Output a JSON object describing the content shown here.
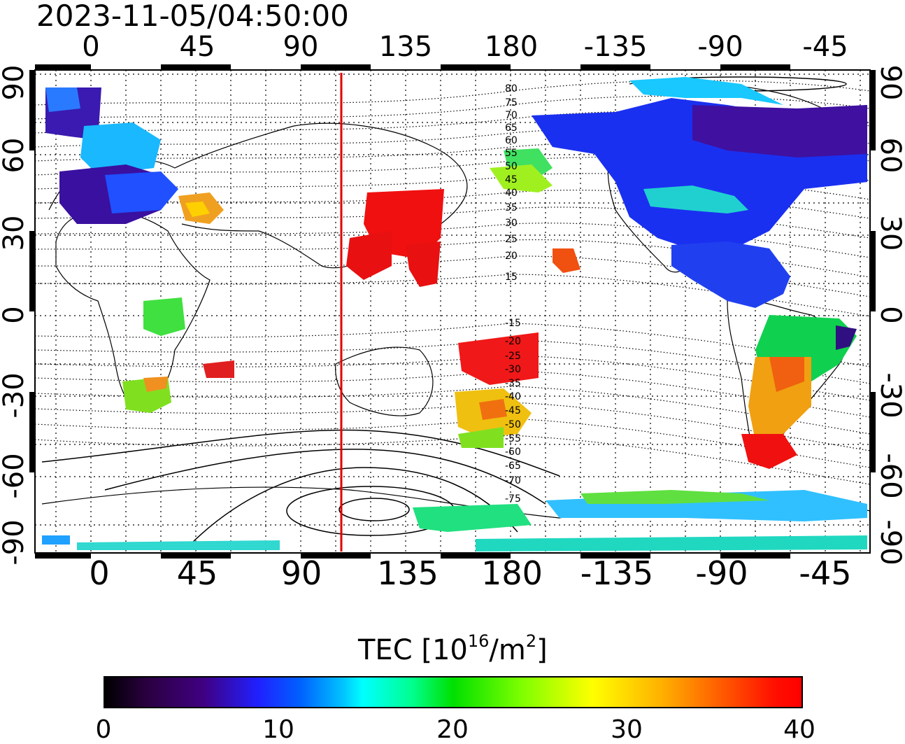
{
  "timestamp": "2023-11-05/04:50:00",
  "axes": {
    "lon_ticks": [
      "0",
      "45",
      "90",
      "135",
      "180",
      "-135",
      "-90",
      "-45"
    ],
    "lat_ticks": [
      "90",
      "60",
      "30",
      "0",
      "-30",
      "-60",
      "-90"
    ],
    "maglat_north": [
      "80",
      "75",
      "70",
      "65",
      "60",
      "55",
      "50",
      "45",
      "40",
      "35",
      "30",
      "25",
      "20",
      "15"
    ],
    "maglat_south": [
      "-15",
      "-20",
      "-25",
      "-30",
      "-35",
      "-40",
      "-45",
      "-50",
      "-55",
      "-60",
      "-65",
      "-70",
      "-75"
    ]
  },
  "colorbar": {
    "title_main": "TEC  [10",
    "title_exp": "16",
    "title_unit": "/m",
    "title_exp2": "2",
    "title_end": "]",
    "ticks": [
      "0",
      "10",
      "20",
      "30",
      "40"
    ],
    "range": [
      0,
      40
    ]
  },
  "terminator": {
    "color": "#e00000",
    "lon": 108
  }
}
